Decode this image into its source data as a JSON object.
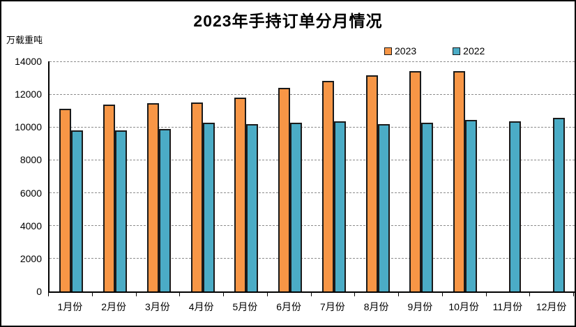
{
  "header": {
    "title": "2023年手持订单分月情况",
    "y_axis_unit": "万载重吨"
  },
  "legend": {
    "items": [
      {
        "label": "2023",
        "color": "#F79646"
      },
      {
        "label": "2022",
        "color": "#4BACC6"
      }
    ]
  },
  "chart_data": {
    "type": "bar",
    "title": "2023年手持订单分月情况",
    "ylabel": "万载重吨",
    "xlabel": "",
    "categories": [
      "1月份",
      "2月份",
      "3月份",
      "4月份",
      "5月份",
      "6月份",
      "7月份",
      "8月份",
      "9月份",
      "10月份",
      "11月份",
      "12月份"
    ],
    "series": [
      {
        "name": "2023",
        "color": "#F79646",
        "values": [
          11100,
          11350,
          11450,
          11500,
          11800,
          12400,
          12800,
          13150,
          13400,
          13400,
          null,
          null
        ]
      },
      {
        "name": "2022",
        "color": "#4BACC6",
        "values": [
          9800,
          9800,
          9900,
          10250,
          10200,
          10250,
          10350,
          10200,
          10250,
          10450,
          10350,
          10550
        ]
      }
    ],
    "ylim": [
      0,
      14000
    ],
    "yticks": [
      0,
      2000,
      4000,
      6000,
      8000,
      10000,
      12000,
      14000
    ],
    "grid": "horizontal-dashed",
    "legend_position": "top-center-right",
    "bar_border_color": "#1a1a1a",
    "gridline_color": "#8c8c8c"
  }
}
